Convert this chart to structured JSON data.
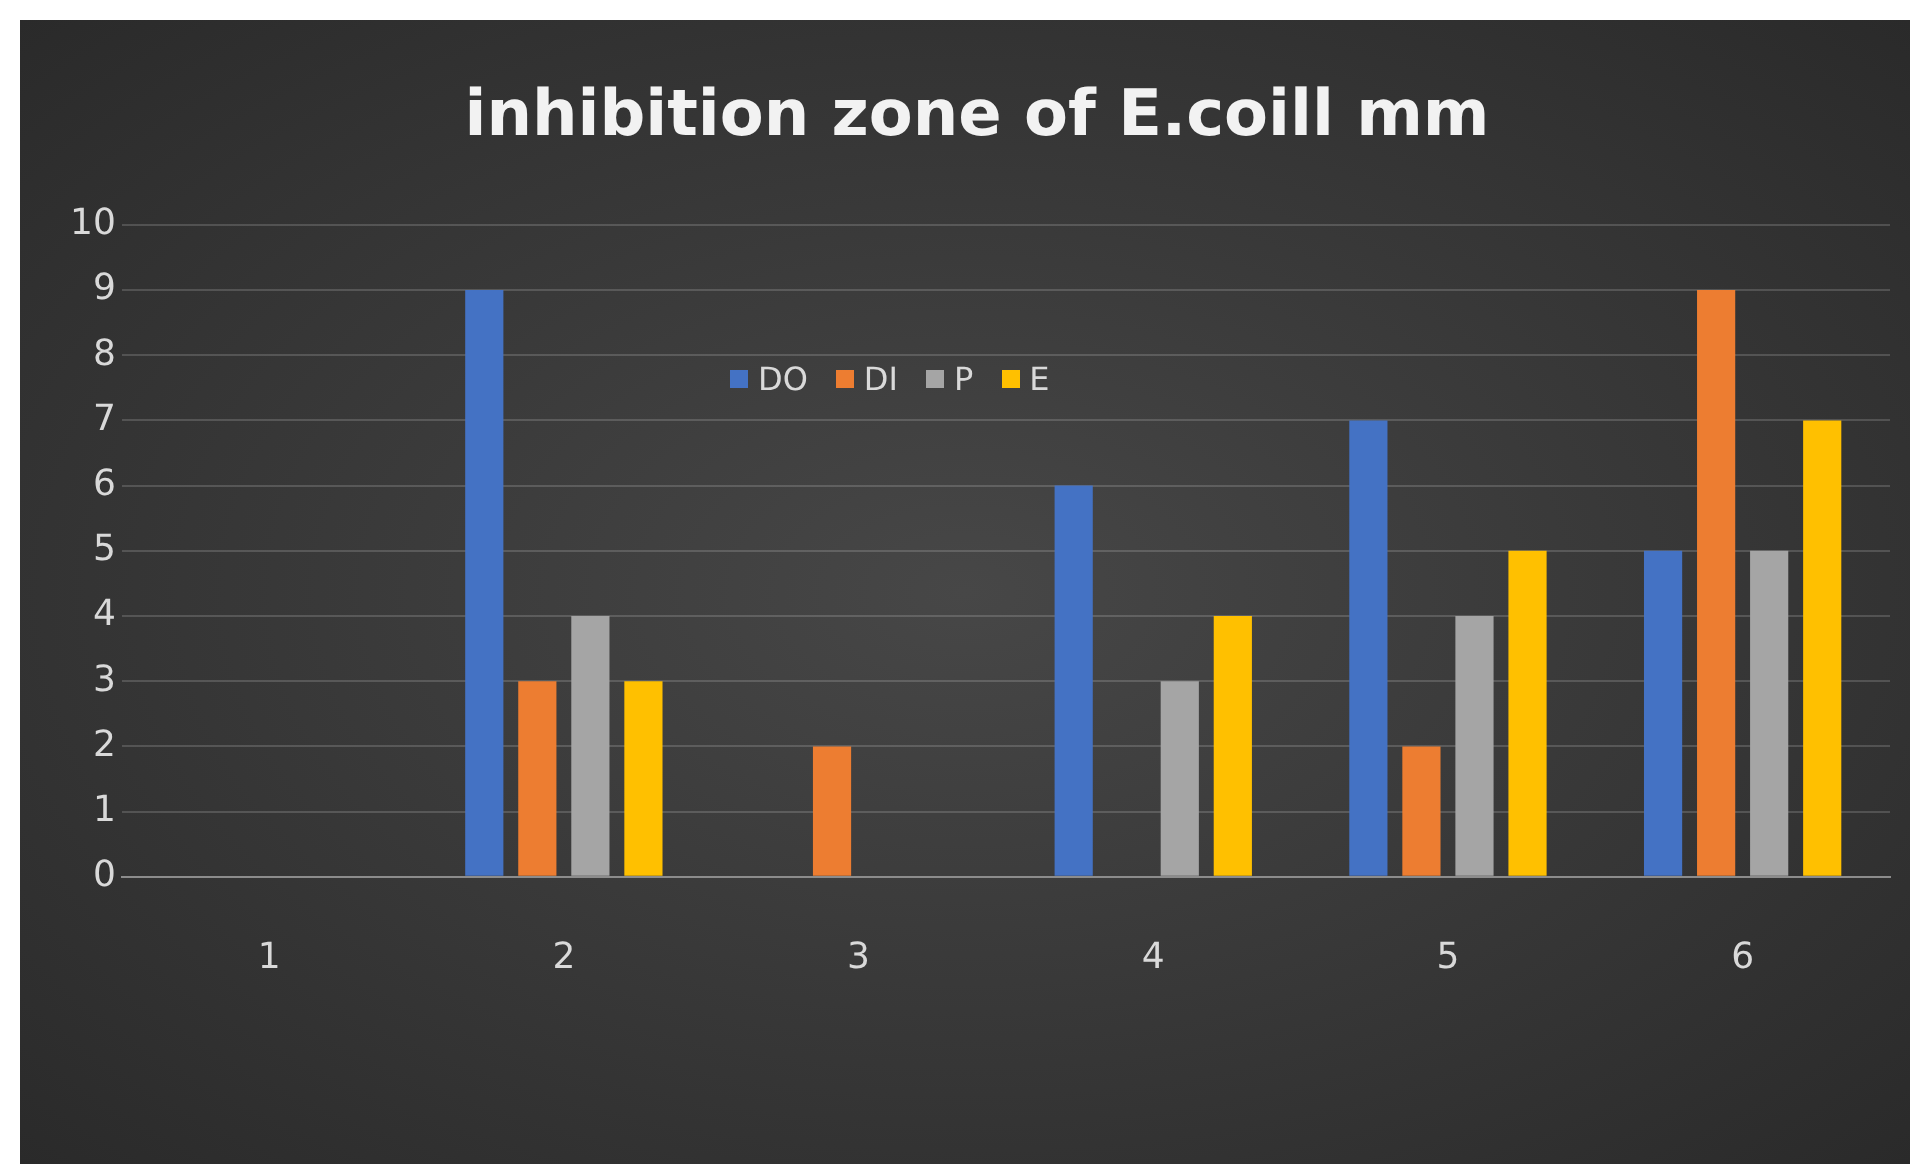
{
  "chart_data": {
    "type": "bar",
    "title": "inhibition zone of E.coill mm",
    "categories": [
      "1",
      "2",
      "3",
      "4",
      "5",
      "6"
    ],
    "series": [
      {
        "name": "DO",
        "color": "#4472c4",
        "values": [
          0,
          9,
          0,
          6,
          7,
          5
        ]
      },
      {
        "name": "DI",
        "color": "#ed7d31",
        "values": [
          0,
          3,
          2,
          0,
          2,
          9
        ]
      },
      {
        "name": "P",
        "color": "#a5a5a5",
        "values": [
          0,
          4,
          0,
          3,
          4,
          5
        ]
      },
      {
        "name": "E",
        "color": "#ffc000",
        "values": [
          0,
          3,
          0,
          4,
          5,
          7
        ]
      }
    ],
    "ylim": [
      0,
      10
    ],
    "yticks": [
      0,
      1,
      2,
      3,
      4,
      5,
      6,
      7,
      8,
      9,
      10
    ],
    "grid": "y",
    "legend": "top"
  }
}
